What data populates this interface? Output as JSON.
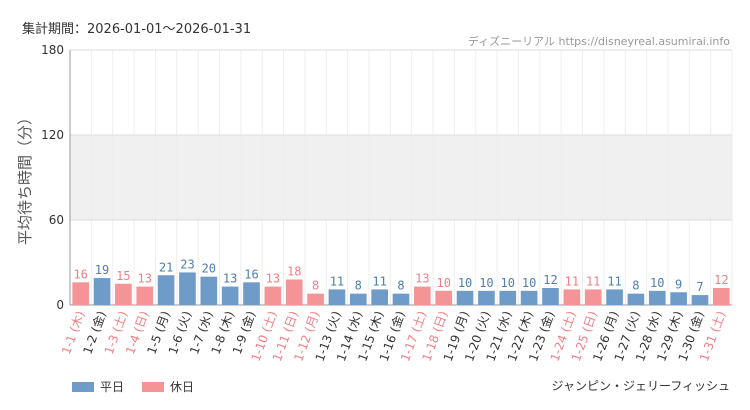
{
  "header": {
    "period_label": "集計期間：2026-01-01〜2026-01-31",
    "watermark": "ディズニーリアル https://disneyreal.asumirai.info"
  },
  "footer": {
    "attraction": "ジャンピン・ジェリーフィッシュ"
  },
  "colors": {
    "weekday": "#6f9bc8",
    "holiday": "#f59496",
    "holiday_text": "#f07f83",
    "weekday_text": "#4e7fae",
    "band": "#f0f0f0"
  },
  "chart_data": {
    "type": "bar",
    "title": "",
    "xlabel": "",
    "ylabel": "平均待ち時間（分）",
    "ylim": [
      0,
      180
    ],
    "yticks": [
      0,
      60,
      120,
      180
    ],
    "grid": true,
    "highlight_band": [
      60,
      120
    ],
    "legend_position": "bottom-left",
    "series": [
      {
        "name": "平日",
        "key": "weekday"
      },
      {
        "name": "休日",
        "key": "holiday"
      }
    ],
    "categories": [
      "1-1 (木)",
      "1-2 (金)",
      "1-3 (土)",
      "1-4 (日)",
      "1-5 (月)",
      "1-6 (火)",
      "1-7 (水)",
      "1-8 (木)",
      "1-9 (金)",
      "1-10 (土)",
      "1-11 (日)",
      "1-12 (月)",
      "1-13 (火)",
      "1-14 (水)",
      "1-15 (木)",
      "1-16 (金)",
      "1-17 (土)",
      "1-18 (日)",
      "1-19 (月)",
      "1-20 (火)",
      "1-21 (水)",
      "1-22 (木)",
      "1-23 (金)",
      "1-24 (土)",
      "1-25 (日)",
      "1-26 (月)",
      "1-27 (火)",
      "1-28 (水)",
      "1-29 (木)",
      "1-30 (金)",
      "1-31 (土)"
    ],
    "values": [
      16,
      19,
      15,
      13,
      21,
      23,
      20,
      13,
      16,
      13,
      18,
      8,
      11,
      8,
      11,
      8,
      13,
      10,
      10,
      10,
      10,
      10,
      12,
      11,
      11,
      11,
      8,
      10,
      9,
      7,
      12
    ],
    "day_type": [
      "holiday",
      "weekday",
      "holiday",
      "holiday",
      "weekday",
      "weekday",
      "weekday",
      "weekday",
      "weekday",
      "holiday",
      "holiday",
      "holiday",
      "weekday",
      "weekday",
      "weekday",
      "weekday",
      "holiday",
      "holiday",
      "weekday",
      "weekday",
      "weekday",
      "weekday",
      "weekday",
      "holiday",
      "holiday",
      "weekday",
      "weekday",
      "weekday",
      "weekday",
      "weekday",
      "holiday"
    ]
  }
}
